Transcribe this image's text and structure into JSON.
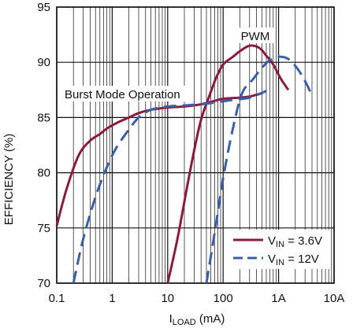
{
  "chart_data": {
    "type": "line",
    "title": "",
    "xlabel": {
      "main": "I",
      "sub": "LOAD",
      "unit": " (mA)"
    },
    "ylabel": "EFFICIENCY (%)",
    "xscale": "log",
    "xlim": [
      0.1,
      10000
    ],
    "ylim": [
      70,
      95
    ],
    "grid": true,
    "legend_position": "bottom-right",
    "x_ticks": [
      {
        "value": 0.1,
        "label": "0.1"
      },
      {
        "value": 1,
        "label": "1"
      },
      {
        "value": 10,
        "label": "10"
      },
      {
        "value": 100,
        "label": "100"
      },
      {
        "value": 1000,
        "label": "1A"
      },
      {
        "value": 10000,
        "label": "10A"
      }
    ],
    "y_ticks": [
      {
        "value": 70,
        "label": "70"
      },
      {
        "value": 75,
        "label": "75"
      },
      {
        "value": 80,
        "label": "80"
      },
      {
        "value": 85,
        "label": "85"
      },
      {
        "value": 90,
        "label": "90"
      },
      {
        "value": 95,
        "label": "95"
      }
    ],
    "annotations": [
      {
        "text": "PWM"
      },
      {
        "text": "Burst Mode Operation"
      }
    ],
    "series": [
      {
        "name": {
          "main": "V",
          "sub": "IN",
          "rest": " = 3.6V"
        },
        "color": "#8b1a3c",
        "style": "solid",
        "segments": [
          [
            [
              0.1,
              75.2
            ],
            [
              0.15,
              78.5
            ],
            [
              0.25,
              81.6
            ],
            [
              0.4,
              82.9
            ],
            [
              0.6,
              83.5
            ],
            [
              0.8,
              84.0
            ],
            [
              1.2,
              84.5
            ],
            [
              2,
              85.0
            ],
            [
              3,
              85.4
            ],
            [
              5,
              85.7
            ],
            [
              10,
              85.9
            ],
            [
              20,
              86.0
            ],
            [
              40,
              86.2
            ],
            [
              70,
              86.5
            ],
            [
              100,
              86.7
            ],
            [
              200,
              86.8
            ],
            [
              300,
              86.9
            ],
            [
              500,
              87.2
            ]
          ],
          [
            [
              10,
              70
            ],
            [
              15,
              74
            ],
            [
              22,
              78.5
            ],
            [
              30,
              82
            ],
            [
              40,
              84.8
            ],
            [
              55,
              86.8
            ],
            [
              75,
              88.6
            ],
            [
              100,
              89.8
            ],
            [
              150,
              90.5
            ],
            [
              200,
              91.0
            ],
            [
              300,
              91.5
            ],
            [
              450,
              91.3
            ],
            [
              600,
              90.6
            ],
            [
              800,
              89.8
            ],
            [
              1100,
              88.5
            ],
            [
              1500,
              87.5
            ]
          ]
        ]
      },
      {
        "name": {
          "main": "V",
          "sub": "IN",
          "rest": " = 12V"
        },
        "color": "#3a5ea8",
        "style": "dashed",
        "segments": [
          [
            [
              0.2,
              70
            ],
            [
              0.3,
              74
            ],
            [
              0.5,
              77.8
            ],
            [
              0.8,
              80.5
            ],
            [
              1.2,
              82.3
            ],
            [
              2,
              83.9
            ],
            [
              3,
              85.0
            ],
            [
              5,
              85.7
            ],
            [
              10,
              86.0
            ],
            [
              20,
              86.1
            ],
            [
              40,
              86.2
            ],
            [
              80,
              86.4
            ],
            [
              150,
              86.6
            ],
            [
              300,
              86.8
            ],
            [
              600,
              87.4
            ]
          ],
          [
            [
              50,
              70
            ],
            [
              70,
              74.5
            ],
            [
              100,
              79.5
            ],
            [
              150,
              84
            ],
            [
              220,
              87.2
            ],
            [
              350,
              88.5
            ],
            [
              500,
              89.5
            ],
            [
              700,
              90.2
            ],
            [
              1000,
              90.5
            ],
            [
              1500,
              90.3
            ],
            [
              2200,
              89.4
            ],
            [
              3000,
              88.3
            ],
            [
              4000,
              87.0
            ]
          ]
        ]
      }
    ]
  }
}
